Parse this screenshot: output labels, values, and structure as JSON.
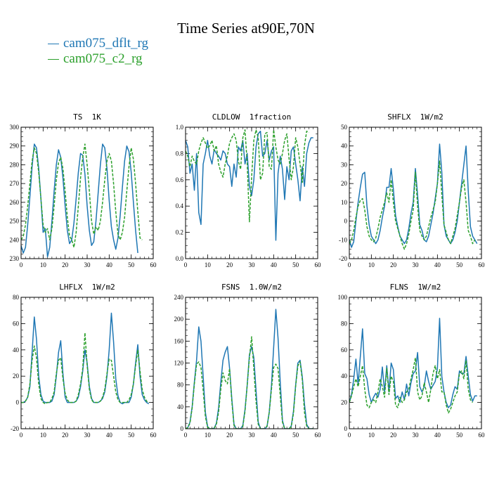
{
  "title": "Time Series at90E,70N",
  "legend": [
    {
      "label": "cam075_dflt_rg",
      "color": "#1f77b4"
    },
    {
      "label": "cam075_c2_rg",
      "color": "#2ca02c"
    }
  ],
  "chart_data": [
    {
      "type": "line",
      "title_var": "TS",
      "title_unit": "1K",
      "xlim": [
        0,
        60
      ],
      "ylim": [
        230,
        300
      ],
      "xticks": [
        0,
        10,
        20,
        30,
        40,
        50,
        60
      ],
      "yticks": [
        230,
        240,
        250,
        260,
        270,
        280,
        290,
        300
      ],
      "series": [
        {
          "color": "#1f77b4",
          "dashed": false,
          "values": [
            237,
            233,
            236,
            248,
            263,
            279,
            291,
            289,
            278,
            262,
            244,
            246,
            231,
            236,
            250,
            266,
            280,
            288,
            284,
            273,
            258,
            245,
            238,
            240,
            249,
            262,
            276,
            286,
            285,
            275,
            258,
            245,
            237,
            239,
            250,
            265,
            280,
            291,
            289,
            278,
            261,
            247,
            240,
            235,
            241,
            253,
            268,
            282,
            290,
            287,
            276,
            260,
            245,
            233
          ]
        },
        {
          "color": "#2ca02c",
          "dashed": true,
          "values": [
            240,
            242,
            248,
            258,
            270,
            282,
            289,
            286,
            276,
            262,
            248,
            244,
            246,
            240,
            246,
            258,
            272,
            281,
            284,
            278,
            266,
            252,
            242,
            240,
            236,
            244,
            258,
            273,
            284,
            291,
            280,
            266,
            250,
            243,
            247,
            245,
            250,
            260,
            272,
            282,
            286,
            282,
            270,
            255,
            243,
            240,
            244,
            252,
            266,
            279,
            289,
            283,
            270,
            255,
            241,
            240
          ]
        }
      ]
    },
    {
      "type": "line",
      "title_var": "CLDLOW",
      "title_unit": "1fraction",
      "xlim": [
        0,
        60
      ],
      "ylim": [
        0.0,
        1.0
      ],
      "xticks": [
        0,
        10,
        20,
        30,
        40,
        50,
        60
      ],
      "yticks": [
        0.0,
        0.2,
        0.4,
        0.6,
        0.8,
        1.0
      ],
      "series": [
        {
          "color": "#1f77b4",
          "dashed": false,
          "values": [
            0.9,
            0.85,
            0.65,
            0.72,
            0.52,
            0.8,
            0.35,
            0.26,
            0.72,
            0.8,
            0.9,
            0.78,
            0.72,
            0.83,
            0.8,
            0.78,
            0.75,
            0.82,
            0.8,
            0.72,
            0.7,
            0.55,
            0.72,
            0.62,
            0.85,
            0.82,
            0.9,
            0.72,
            0.8,
            0.55,
            0.48,
            0.6,
            0.85,
            0.95,
            0.97,
            0.78,
            0.8,
            0.9,
            0.75,
            0.82,
            0.85,
            0.14,
            0.65,
            0.78,
            0.68,
            0.45,
            0.7,
            0.6,
            0.82,
            0.85,
            0.72,
            0.6,
            0.44,
            0.7,
            0.55,
            0.8,
            0.88,
            0.92,
            0.92
          ]
        },
        {
          "color": "#2ca02c",
          "dashed": true,
          "values": [
            0.82,
            0.78,
            0.7,
            0.78,
            0.74,
            0.72,
            0.82,
            0.88,
            0.92,
            0.88,
            0.84,
            0.86,
            0.9,
            0.82,
            0.86,
            0.72,
            0.66,
            0.62,
            0.72,
            0.78,
            0.88,
            0.92,
            0.95,
            0.9,
            0.74,
            0.68,
            0.92,
            0.98,
            0.72,
            0.28,
            0.62,
            0.9,
            0.98,
            0.92,
            0.6,
            0.65,
            0.95,
            0.96,
            0.7,
            0.68,
            0.98,
            0.85,
            0.75,
            0.72,
            0.8,
            0.9,
            0.95,
            0.76,
            0.6,
            0.7,
            0.92,
            0.85,
            0.72,
            0.58,
            0.86,
            0.97,
            0.96
          ]
        }
      ]
    },
    {
      "type": "line",
      "title_var": "SHFLX",
      "title_unit": "1W/m2",
      "xlim": [
        0,
        60
      ],
      "ylim": [
        -20,
        50
      ],
      "xticks": [
        0,
        10,
        20,
        30,
        40,
        50,
        60
      ],
      "yticks": [
        -20,
        -10,
        0,
        10,
        20,
        30,
        40,
        50
      ],
      "series": [
        {
          "color": "#1f77b4",
          "dashed": false,
          "values": [
            -10,
            -14,
            -11,
            0,
            10,
            18,
            25,
            26,
            8,
            -2,
            -8,
            -10,
            -12,
            -10,
            -5,
            2,
            8,
            18,
            18,
            28,
            17,
            3,
            -3,
            -8,
            -10,
            -12,
            -10,
            -4,
            4,
            10,
            28,
            14,
            -2,
            -5,
            -10,
            -11,
            -8,
            -2,
            4,
            12,
            20,
            41,
            26,
            -2,
            -8,
            -10,
            -12,
            -10,
            -6,
            0,
            10,
            20,
            30,
            40,
            16,
            -3,
            -8,
            -10,
            -12
          ]
        },
        {
          "color": "#2ca02c",
          "dashed": true,
          "values": [
            -12,
            -10,
            -5,
            2,
            8,
            11,
            12,
            6,
            -3,
            -8,
            -10,
            -11,
            -9,
            -4,
            2,
            6,
            10,
            15,
            10,
            22,
            10,
            0,
            -4,
            -8,
            -12,
            -15,
            -12,
            -7,
            0,
            6,
            26,
            8,
            -5,
            -8,
            -10,
            -8,
            -3,
            2,
            6,
            10,
            20,
            32,
            14,
            -2,
            -6,
            -10,
            -12,
            -8,
            -4,
            3,
            10,
            18,
            22,
            10,
            -5,
            -8,
            -12,
            -10
          ]
        }
      ]
    },
    {
      "type": "line",
      "title_var": "LHFLX",
      "title_unit": "1W/m2",
      "xlim": [
        0,
        60
      ],
      "ylim": [
        -20,
        80
      ],
      "xticks": [
        0,
        10,
        20,
        30,
        40,
        50,
        60
      ],
      "yticks": [
        -20,
        0,
        20,
        40,
        60,
        80
      ],
      "series": [
        {
          "color": "#1f77b4",
          "dashed": false,
          "values": [
            0,
            0,
            1,
            4,
            12,
            38,
            65,
            48,
            20,
            6,
            1,
            0,
            0,
            0,
            1,
            6,
            20,
            38,
            47,
            22,
            4,
            0,
            0,
            0,
            0,
            1,
            4,
            12,
            24,
            40,
            30,
            12,
            3,
            0,
            0,
            0,
            1,
            3,
            8,
            20,
            40,
            68,
            46,
            18,
            5,
            0,
            -1,
            0,
            0,
            0,
            4,
            14,
            30,
            44,
            20,
            6,
            2,
            0,
            -1
          ]
        },
        {
          "color": "#2ca02c",
          "dashed": true,
          "values": [
            0,
            0,
            1,
            4,
            14,
            32,
            43,
            34,
            14,
            3,
            0,
            -1,
            0,
            0,
            3,
            8,
            22,
            32,
            34,
            18,
            7,
            2,
            0,
            0,
            0,
            1,
            6,
            14,
            26,
            53,
            28,
            10,
            2,
            0,
            0,
            0,
            1,
            4,
            10,
            22,
            33,
            32,
            20,
            8,
            2,
            0,
            0,
            0,
            0,
            2,
            6,
            14,
            28,
            40,
            24,
            10,
            4,
            1,
            0
          ]
        }
      ]
    },
    {
      "type": "line",
      "title_var": "FSNS",
      "title_unit": "1.0W/m2",
      "xlim": [
        0,
        60
      ],
      "ylim": [
        0,
        240
      ],
      "xticks": [
        0,
        10,
        20,
        30,
        40,
        50,
        60
      ],
      "yticks": [
        0,
        40,
        80,
        120,
        160,
        200,
        240
      ],
      "series": [
        {
          "color": "#1f77b4",
          "dashed": false,
          "values": [
            0,
            2,
            12,
            40,
            85,
            125,
            186,
            160,
            95,
            30,
            4,
            0,
            0,
            1,
            10,
            38,
            85,
            125,
            140,
            150,
            110,
            55,
            8,
            0,
            0,
            0,
            6,
            35,
            80,
            135,
            150,
            130,
            70,
            12,
            0,
            0,
            0,
            4,
            30,
            78,
            148,
            218,
            165,
            85,
            15,
            0,
            0,
            0,
            5,
            32,
            80,
            120,
            125,
            95,
            45,
            8,
            0,
            0,
            0
          ]
        },
        {
          "color": "#2ca02c",
          "dashed": true,
          "values": [
            0,
            2,
            10,
            38,
            82,
            118,
            122,
            112,
            70,
            22,
            3,
            0,
            0,
            1,
            8,
            30,
            72,
            102,
            88,
            82,
            110,
            50,
            6,
            0,
            0,
            0,
            4,
            32,
            80,
            130,
            168,
            110,
            50,
            8,
            0,
            0,
            0,
            5,
            30,
            72,
            112,
            118,
            110,
            60,
            12,
            0,
            0,
            0,
            4,
            28,
            78,
            115,
            122,
            90,
            30,
            5,
            0,
            0,
            0
          ]
        }
      ]
    },
    {
      "type": "line",
      "title_var": "FLNS",
      "title_unit": "1W/m2",
      "xlim": [
        0,
        60
      ],
      "ylim": [
        0,
        100
      ],
      "xticks": [
        0,
        10,
        20,
        30,
        40,
        50,
        60
      ],
      "yticks": [
        0,
        20,
        40,
        60,
        80,
        100
      ],
      "series": [
        {
          "color": "#1f77b4",
          "dashed": false,
          "values": [
            20,
            26,
            38,
            53,
            34,
            55,
            76,
            42,
            38,
            26,
            20,
            24,
            27,
            24,
            30,
            47,
            28,
            48,
            28,
            50,
            45,
            23,
            25,
            20,
            28,
            22,
            34,
            25,
            35,
            42,
            44,
            58,
            32,
            28,
            32,
            44,
            36,
            30,
            33,
            36,
            46,
            84,
            40,
            28,
            20,
            16,
            18,
            26,
            32,
            30,
            44,
            42,
            42,
            55,
            40,
            26,
            21,
            25,
            25
          ]
        },
        {
          "color": "#2ca02c",
          "dashed": true,
          "values": [
            20,
            25,
            32,
            38,
            32,
            40,
            48,
            30,
            18,
            16,
            20,
            22,
            20,
            28,
            38,
            32,
            24,
            46,
            26,
            40,
            36,
            18,
            16,
            24,
            20,
            22,
            28,
            30,
            38,
            45,
            54,
            28,
            22,
            25,
            35,
            28,
            20,
            30,
            42,
            48,
            38,
            45,
            28,
            28,
            18,
            12,
            15,
            20,
            25,
            28,
            42,
            44,
            38,
            52,
            30,
            22,
            20
          ]
        }
      ]
    }
  ]
}
